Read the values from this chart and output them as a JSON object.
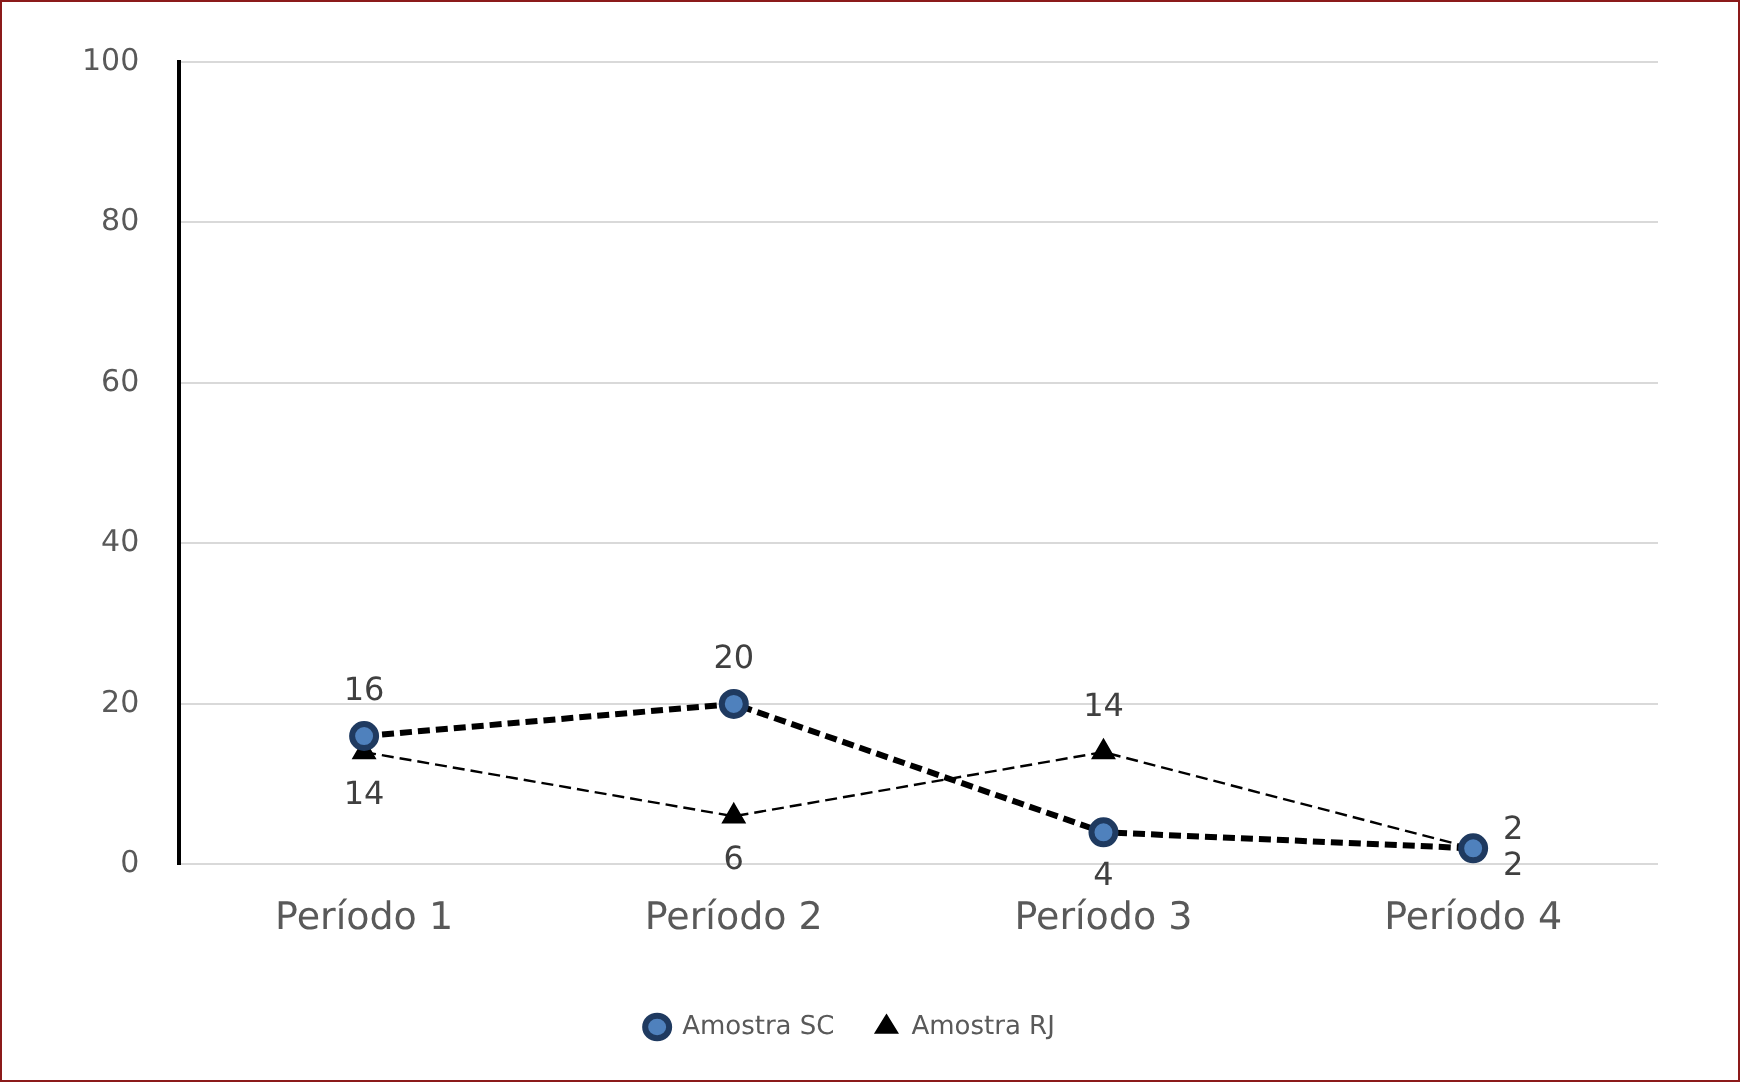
{
  "chart_data": {
    "type": "line",
    "categories": [
      "Período 1",
      "Período 2",
      "Período 3",
      "Período 4"
    ],
    "series": [
      {
        "name": "Amostra SC",
        "color": "#4f81bd",
        "values": [
          16,
          20,
          4,
          2
        ],
        "marker": "circle",
        "line_style": "dashed"
      },
      {
        "name": "Amostra RJ",
        "color": "#000000",
        "values": [
          14,
          6,
          14,
          2
        ],
        "marker": "triangle",
        "line_style": "dashed"
      }
    ],
    "ylim": [
      0,
      100
    ],
    "yticks": [
      0,
      20,
      40,
      60,
      80,
      100
    ],
    "grid": "y",
    "legend": "bottom",
    "data_labels": true
  }
}
